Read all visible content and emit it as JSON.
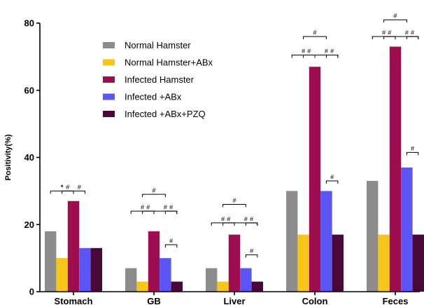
{
  "chart_data": {
    "type": "bar",
    "title": "",
    "xlabel": "",
    "ylabel": "Positivity(%)",
    "ylim": [
      0,
      80
    ],
    "yticks": [
      0,
      20,
      40,
      60,
      80
    ],
    "categories": [
      "Stomach",
      "GB",
      "Liver",
      "Colon",
      "Feces"
    ],
    "legend_position": "top-left",
    "grid": false,
    "series": [
      {
        "name": "Normal Hamster",
        "color": "#8c8c8c",
        "values": [
          18,
          7,
          7,
          30,
          33
        ]
      },
      {
        "name": "Normal Hamster+ABx",
        "color": "#f5c518",
        "values": [
          10,
          3,
          3,
          17,
          17
        ]
      },
      {
        "name": "Infected Hamster",
        "color": "#9e0d4f",
        "values": [
          27,
          18,
          17,
          67,
          73
        ]
      },
      {
        "name": "Infected +ABx",
        "color": "#5b55f5",
        "values": [
          13,
          10,
          7,
          30,
          37
        ]
      },
      {
        "name": "Infected +ABx+PZQ",
        "color": "#4a0838",
        "values": [
          13,
          3,
          3,
          17,
          17
        ]
      }
    ],
    "significance_markers": [
      {
        "category": "Stomach",
        "symbol": "*",
        "from_series": 0,
        "to_series": 2,
        "y": 30
      },
      {
        "category": "Stomach",
        "symbol": "#",
        "from_series": 1,
        "to_series": 2,
        "y": 30
      },
      {
        "category": "Stomach",
        "symbol": "#",
        "from_series": 2,
        "to_series": 3,
        "y": 30
      },
      {
        "category": "GB",
        "symbol": "#",
        "from_series": 1,
        "to_series": 3,
        "y": 29
      },
      {
        "category": "GB",
        "symbol": "#",
        "from_series": 0,
        "to_series": 2,
        "y": 24
      },
      {
        "category": "GB",
        "symbol": "#",
        "from_series": 1,
        "to_series": 2,
        "y": 24
      },
      {
        "category": "GB",
        "symbol": "#",
        "from_series": 2,
        "to_series": 4,
        "y": 24
      },
      {
        "category": "GB",
        "symbol": "#",
        "from_series": 3,
        "to_series": 4,
        "y": 24
      },
      {
        "category": "GB",
        "symbol": "#",
        "from_series": 3,
        "to_series": 4,
        "y": 14
      },
      {
        "category": "Liver",
        "symbol": "#",
        "from_series": 1,
        "to_series": 3,
        "y": 26
      },
      {
        "category": "Liver",
        "symbol": "#",
        "from_series": 0,
        "to_series": 2,
        "y": 20.5
      },
      {
        "category": "Liver",
        "symbol": "#",
        "from_series": 1,
        "to_series": 2,
        "y": 20.5
      },
      {
        "category": "Liver",
        "symbol": "#",
        "from_series": 2,
        "to_series": 4,
        "y": 20.5
      },
      {
        "category": "Liver",
        "symbol": "#",
        "from_series": 3,
        "to_series": 4,
        "y": 20.5
      },
      {
        "category": "Liver",
        "symbol": "#",
        "from_series": 3,
        "to_series": 4,
        "y": 11
      },
      {
        "category": "Colon",
        "symbol": "#",
        "from_series": 1,
        "to_series": 3,
        "y": 76
      },
      {
        "category": "Colon",
        "symbol": "#",
        "from_series": 0,
        "to_series": 2,
        "y": 70.5
      },
      {
        "category": "Colon",
        "symbol": "#",
        "from_series": 1,
        "to_series": 2,
        "y": 70.5
      },
      {
        "category": "Colon",
        "symbol": "#",
        "from_series": 2,
        "to_series": 4,
        "y": 70.5
      },
      {
        "category": "Colon",
        "symbol": "#",
        "from_series": 3,
        "to_series": 4,
        "y": 70.5
      },
      {
        "category": "Colon",
        "symbol": "#",
        "from_series": 3,
        "to_series": 4,
        "y": 33
      },
      {
        "category": "Feces",
        "symbol": "#",
        "from_series": 1,
        "to_series": 3,
        "y": 81
      },
      {
        "category": "Feces",
        "symbol": "#",
        "from_series": 0,
        "to_series": 2,
        "y": 76
      },
      {
        "category": "Feces",
        "symbol": "#",
        "from_series": 1,
        "to_series": 2,
        "y": 76
      },
      {
        "category": "Feces",
        "symbol": "#",
        "from_series": 2,
        "to_series": 4,
        "y": 76
      },
      {
        "category": "Feces",
        "symbol": "#",
        "from_series": 3,
        "to_series": 4,
        "y": 76
      },
      {
        "category": "Feces",
        "symbol": "#",
        "from_series": 3,
        "to_series": 4,
        "y": 41.5
      }
    ]
  }
}
